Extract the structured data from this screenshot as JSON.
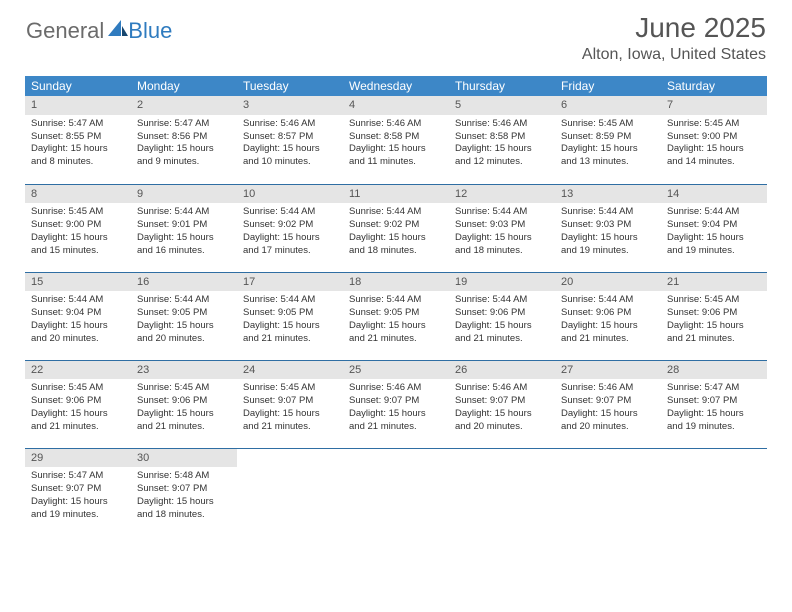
{
  "brand": {
    "part1": "General",
    "part2": "Blue"
  },
  "title": "June 2025",
  "location": "Alton, Iowa, United States",
  "colors": {
    "header_bg": "#3d87c7",
    "daynum_bg": "#e5e5e5",
    "row_border": "#2f6ea3",
    "text": "#333333",
    "title_text": "#555555"
  },
  "weekdays": [
    "Sunday",
    "Monday",
    "Tuesday",
    "Wednesday",
    "Thursday",
    "Friday",
    "Saturday"
  ],
  "days": [
    {
      "n": 1,
      "sunrise": "5:47 AM",
      "sunset": "8:55 PM",
      "dl": "15 hours and 8 minutes."
    },
    {
      "n": 2,
      "sunrise": "5:47 AM",
      "sunset": "8:56 PM",
      "dl": "15 hours and 9 minutes."
    },
    {
      "n": 3,
      "sunrise": "5:46 AM",
      "sunset": "8:57 PM",
      "dl": "15 hours and 10 minutes."
    },
    {
      "n": 4,
      "sunrise": "5:46 AM",
      "sunset": "8:58 PM",
      "dl": "15 hours and 11 minutes."
    },
    {
      "n": 5,
      "sunrise": "5:46 AM",
      "sunset": "8:58 PM",
      "dl": "15 hours and 12 minutes."
    },
    {
      "n": 6,
      "sunrise": "5:45 AM",
      "sunset": "8:59 PM",
      "dl": "15 hours and 13 minutes."
    },
    {
      "n": 7,
      "sunrise": "5:45 AM",
      "sunset": "9:00 PM",
      "dl": "15 hours and 14 minutes."
    },
    {
      "n": 8,
      "sunrise": "5:45 AM",
      "sunset": "9:00 PM",
      "dl": "15 hours and 15 minutes."
    },
    {
      "n": 9,
      "sunrise": "5:44 AM",
      "sunset": "9:01 PM",
      "dl": "15 hours and 16 minutes."
    },
    {
      "n": 10,
      "sunrise": "5:44 AM",
      "sunset": "9:02 PM",
      "dl": "15 hours and 17 minutes."
    },
    {
      "n": 11,
      "sunrise": "5:44 AM",
      "sunset": "9:02 PM",
      "dl": "15 hours and 18 minutes."
    },
    {
      "n": 12,
      "sunrise": "5:44 AM",
      "sunset": "9:03 PM",
      "dl": "15 hours and 18 minutes."
    },
    {
      "n": 13,
      "sunrise": "5:44 AM",
      "sunset": "9:03 PM",
      "dl": "15 hours and 19 minutes."
    },
    {
      "n": 14,
      "sunrise": "5:44 AM",
      "sunset": "9:04 PM",
      "dl": "15 hours and 19 minutes."
    },
    {
      "n": 15,
      "sunrise": "5:44 AM",
      "sunset": "9:04 PM",
      "dl": "15 hours and 20 minutes."
    },
    {
      "n": 16,
      "sunrise": "5:44 AM",
      "sunset": "9:05 PM",
      "dl": "15 hours and 20 minutes."
    },
    {
      "n": 17,
      "sunrise": "5:44 AM",
      "sunset": "9:05 PM",
      "dl": "15 hours and 21 minutes."
    },
    {
      "n": 18,
      "sunrise": "5:44 AM",
      "sunset": "9:05 PM",
      "dl": "15 hours and 21 minutes."
    },
    {
      "n": 19,
      "sunrise": "5:44 AM",
      "sunset": "9:06 PM",
      "dl": "15 hours and 21 minutes."
    },
    {
      "n": 20,
      "sunrise": "5:44 AM",
      "sunset": "9:06 PM",
      "dl": "15 hours and 21 minutes."
    },
    {
      "n": 21,
      "sunrise": "5:45 AM",
      "sunset": "9:06 PM",
      "dl": "15 hours and 21 minutes."
    },
    {
      "n": 22,
      "sunrise": "5:45 AM",
      "sunset": "9:06 PM",
      "dl": "15 hours and 21 minutes."
    },
    {
      "n": 23,
      "sunrise": "5:45 AM",
      "sunset": "9:06 PM",
      "dl": "15 hours and 21 minutes."
    },
    {
      "n": 24,
      "sunrise": "5:45 AM",
      "sunset": "9:07 PM",
      "dl": "15 hours and 21 minutes."
    },
    {
      "n": 25,
      "sunrise": "5:46 AM",
      "sunset": "9:07 PM",
      "dl": "15 hours and 21 minutes."
    },
    {
      "n": 26,
      "sunrise": "5:46 AM",
      "sunset": "9:07 PM",
      "dl": "15 hours and 20 minutes."
    },
    {
      "n": 27,
      "sunrise": "5:46 AM",
      "sunset": "9:07 PM",
      "dl": "15 hours and 20 minutes."
    },
    {
      "n": 28,
      "sunrise": "5:47 AM",
      "sunset": "9:07 PM",
      "dl": "15 hours and 19 minutes."
    },
    {
      "n": 29,
      "sunrise": "5:47 AM",
      "sunset": "9:07 PM",
      "dl": "15 hours and 19 minutes."
    },
    {
      "n": 30,
      "sunrise": "5:48 AM",
      "sunset": "9:07 PM",
      "dl": "15 hours and 18 minutes."
    }
  ],
  "labels": {
    "sunrise": "Sunrise:",
    "sunset": "Sunset:",
    "daylight": "Daylight:"
  }
}
